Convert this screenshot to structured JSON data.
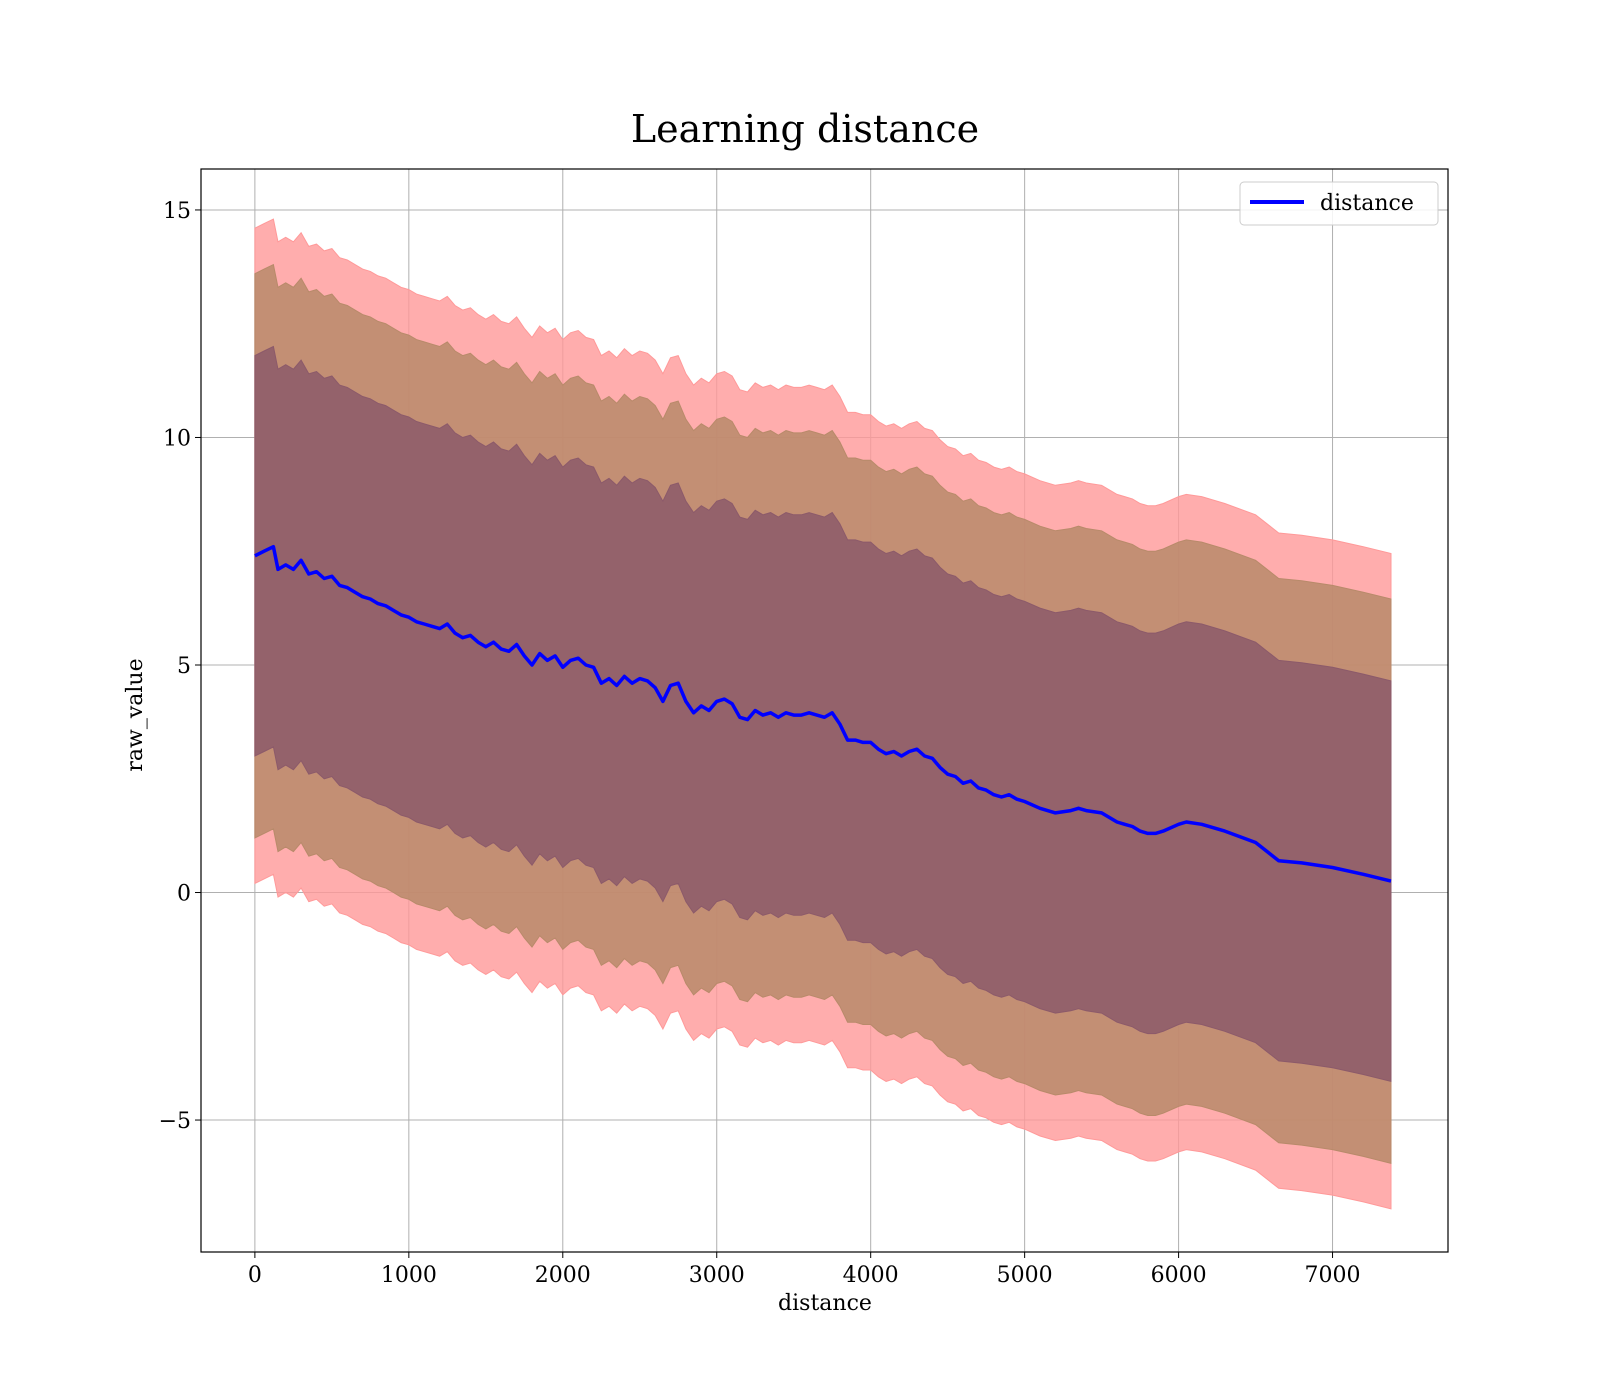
{
  "chart_data": {
    "type": "line",
    "title": "Learning distance",
    "xlabel": "distance",
    "ylabel": "raw_value",
    "xlim": [
      -350,
      7750
    ],
    "ylim": [
      -7.9,
      15.9
    ],
    "xticks": [
      0,
      1000,
      2000,
      3000,
      4000,
      5000,
      6000,
      7000
    ],
    "yticks": [
      -5,
      0,
      5,
      10,
      15
    ],
    "xtick_labels": [
      "0",
      "1000",
      "2000",
      "3000",
      "4000",
      "5000",
      "6000",
      "7000"
    ],
    "ytick_labels": [
      "−5",
      "0",
      "5",
      "10",
      "15"
    ],
    "grid": true,
    "legend": {
      "position": "top-right",
      "entries": [
        "distance"
      ]
    },
    "bands": [
      {
        "sigma": 3,
        "color": "#ff9999",
        "offset": 7.2
      },
      {
        "sigma": 2,
        "color": "#b88a6a",
        "offset": 6.2
      },
      {
        "sigma": 1,
        "color": "#8c5a6a",
        "offset": 4.4
      }
    ],
    "series": [
      {
        "name": "distance",
        "color": "#0000ff",
        "x": [
          0,
          60,
          120,
          150,
          200,
          250,
          300,
          350,
          400,
          450,
          500,
          550,
          600,
          650,
          700,
          750,
          800,
          850,
          900,
          950,
          1000,
          1050,
          1100,
          1150,
          1200,
          1250,
          1300,
          1350,
          1400,
          1450,
          1500,
          1550,
          1600,
          1650,
          1700,
          1750,
          1800,
          1850,
          1900,
          1950,
          2000,
          2050,
          2100,
          2150,
          2200,
          2250,
          2300,
          2350,
          2400,
          2450,
          2500,
          2550,
          2600,
          2650,
          2700,
          2750,
          2800,
          2850,
          2900,
          2950,
          3000,
          3050,
          3100,
          3150,
          3200,
          3250,
          3300,
          3350,
          3400,
          3450,
          3500,
          3550,
          3600,
          3650,
          3700,
          3750,
          3800,
          3850,
          3900,
          3950,
          4000,
          4050,
          4100,
          4150,
          4200,
          4250,
          4300,
          4350,
          4400,
          4450,
          4500,
          4550,
          4600,
          4650,
          4700,
          4750,
          4800,
          4850,
          4900,
          4950,
          5000,
          5100,
          5200,
          5300,
          5350,
          5400,
          5500,
          5600,
          5650,
          5700,
          5750,
          5800,
          5850,
          5900,
          6000,
          6050,
          6150,
          6300,
          6500,
          6650,
          6800,
          7000,
          7200,
          7380
        ],
        "y": [
          7.4,
          7.5,
          7.6,
          7.1,
          7.2,
          7.1,
          7.3,
          7.0,
          7.05,
          6.9,
          6.95,
          6.75,
          6.7,
          6.6,
          6.5,
          6.45,
          6.35,
          6.3,
          6.2,
          6.1,
          6.05,
          5.95,
          5.9,
          5.85,
          5.8,
          5.9,
          5.7,
          5.6,
          5.65,
          5.5,
          5.4,
          5.5,
          5.35,
          5.3,
          5.45,
          5.2,
          5.0,
          5.25,
          5.1,
          5.2,
          4.95,
          5.1,
          5.15,
          5.0,
          4.95,
          4.6,
          4.7,
          4.55,
          4.75,
          4.6,
          4.7,
          4.65,
          4.5,
          4.2,
          4.55,
          4.6,
          4.2,
          3.95,
          4.1,
          4.0,
          4.2,
          4.25,
          4.15,
          3.85,
          3.8,
          4.0,
          3.9,
          3.95,
          3.85,
          3.95,
          3.9,
          3.9,
          3.95,
          3.9,
          3.85,
          3.95,
          3.7,
          3.35,
          3.35,
          3.3,
          3.3,
          3.15,
          3.05,
          3.1,
          3.0,
          3.1,
          3.15,
          3.0,
          2.95,
          2.75,
          2.6,
          2.55,
          2.4,
          2.45,
          2.3,
          2.25,
          2.15,
          2.1,
          2.15,
          2.05,
          2.0,
          1.85,
          1.75,
          1.8,
          1.85,
          1.8,
          1.75,
          1.55,
          1.5,
          1.45,
          1.35,
          1.3,
          1.3,
          1.35,
          1.5,
          1.55,
          1.5,
          1.35,
          1.1,
          0.7,
          0.65,
          0.55,
          0.4,
          0.25
        ]
      }
    ]
  }
}
